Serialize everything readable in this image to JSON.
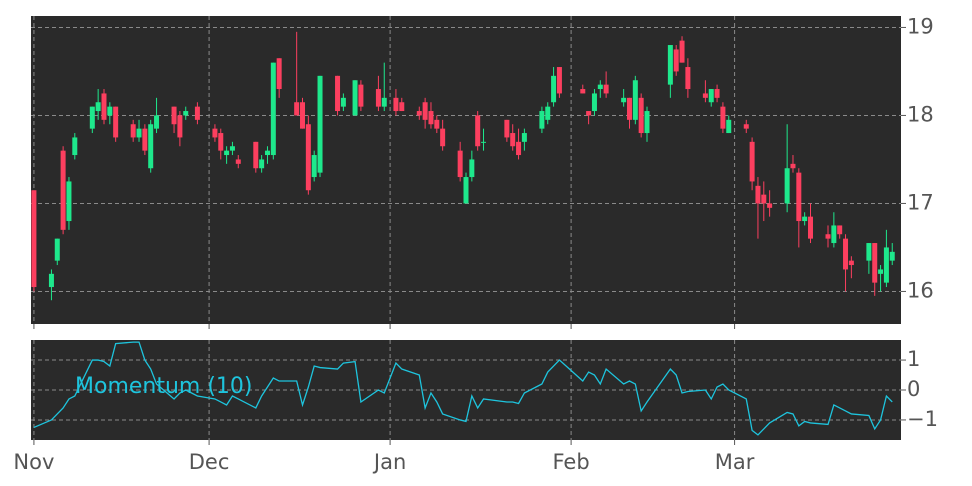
{
  "chart_data": [
    {
      "type": "candlestick",
      "x": [
        0,
        3,
        4,
        5,
        6,
        7,
        10,
        11,
        12,
        13,
        14,
        17,
        18,
        19,
        20,
        21,
        24,
        25,
        26,
        28,
        31,
        32,
        33,
        34,
        35,
        38,
        39,
        40,
        41,
        42,
        45,
        46,
        47,
        48,
        49,
        52,
        53,
        55,
        56,
        59,
        60,
        62,
        63,
        66,
        67,
        68,
        69,
        70,
        73,
        74,
        75,
        76,
        77,
        81,
        82,
        83,
        84,
        87,
        88,
        89,
        90,
        94,
        95,
        96,
        97,
        98,
        101,
        102,
        103,
        104,
        105,
        109,
        110,
        111,
        112,
        115,
        116,
        117,
        118,
        119,
        122,
        123,
        124,
        125,
        126,
        129,
        130,
        131,
        132,
        133,
        136,
        137,
        138,
        139,
        140,
        143,
        144,
        145,
        146,
        147
      ],
      "open": [
        17.15,
        16.05,
        16.35,
        17.6,
        16.8,
        17.55,
        17.85,
        18.05,
        18.25,
        18.0,
        18.1,
        17.9,
        17.75,
        17.85,
        17.4,
        17.85,
        18.1,
        18.0,
        18.0,
        18.1,
        17.85,
        17.8,
        17.55,
        17.6,
        17.5,
        17.7,
        17.4,
        17.55,
        17.55,
        18.65,
        18.15,
        18.15,
        17.9,
        17.3,
        17.35,
        18.45,
        18.1,
        18.0,
        18.35,
        18.3,
        18.1,
        18.2,
        18.15,
        18.05,
        18.15,
        18.05,
        17.95,
        17.85,
        17.6,
        17.0,
        17.3,
        18.0,
        17.7,
        17.95,
        17.8,
        17.7,
        17.7,
        17.85,
        17.95,
        18.15,
        18.55,
        18.3,
        18.05,
        18.05,
        18.3,
        18.35,
        18.15,
        18.2,
        17.95,
        18.2,
        17.8,
        18.35,
        18.75,
        18.85,
        18.55,
        18.25,
        18.15,
        18.3,
        18.1,
        17.8,
        17.9,
        17.7,
        17.2,
        17.1,
        17.0,
        17.0,
        17.45,
        17.35,
        16.8,
        16.85,
        16.65,
        16.55,
        16.75,
        16.6,
        16.35,
        16.35,
        16.55,
        16.2,
        16.1,
        16.35
      ],
      "high": [
        17.15,
        16.25,
        16.6,
        17.65,
        17.3,
        17.8,
        18.1,
        18.3,
        18.3,
        18.15,
        18.1,
        17.95,
        17.95,
        17.9,
        17.95,
        18.2,
        18.1,
        18.05,
        18.1,
        18.15,
        17.9,
        17.85,
        17.65,
        17.7,
        17.55,
        17.7,
        17.55,
        17.65,
        18.6,
        18.65,
        18.95,
        18.2,
        18.0,
        17.6,
        18.45,
        18.45,
        18.25,
        18.4,
        18.4,
        18.45,
        18.6,
        18.3,
        18.2,
        18.1,
        18.2,
        18.15,
        18.0,
        17.95,
        17.7,
        17.35,
        17.6,
        18.05,
        17.85,
        17.95,
        17.9,
        17.85,
        17.85,
        18.1,
        18.15,
        18.55,
        18.55,
        18.35,
        18.05,
        18.3,
        18.4,
        18.5,
        18.3,
        18.2,
        18.45,
        18.25,
        18.1,
        18.8,
        18.8,
        18.9,
        18.65,
        18.4,
        18.3,
        18.35,
        18.15,
        18.0,
        17.95,
        17.75,
        17.3,
        17.25,
        17.15,
        17.9,
        17.55,
        17.4,
        16.9,
        17.0,
        16.75,
        16.9,
        16.75,
        16.65,
        16.4,
        16.55,
        16.55,
        16.3,
        16.7,
        16.55
      ],
      "low": [
        16.0,
        15.9,
        16.3,
        16.65,
        16.7,
        17.5,
        17.8,
        17.95,
        17.9,
        17.9,
        17.7,
        17.7,
        17.7,
        17.55,
        17.35,
        17.8,
        17.8,
        17.65,
        17.95,
        17.9,
        17.7,
        17.5,
        17.45,
        17.55,
        17.4,
        17.35,
        17.35,
        17.45,
        17.5,
        18.2,
        18.0,
        17.85,
        17.1,
        17.25,
        17.3,
        18.0,
        18.05,
        18.0,
        18.05,
        18.05,
        18.05,
        18.0,
        18.05,
        17.95,
        17.85,
        17.85,
        17.8,
        17.6,
        17.25,
        17.0,
        17.25,
        17.6,
        17.6,
        17.7,
        17.6,
        17.5,
        17.6,
        17.8,
        17.9,
        18.1,
        18.2,
        18.25,
        17.9,
        18.0,
        18.2,
        18.2,
        18.1,
        17.85,
        17.9,
        17.75,
        17.7,
        18.2,
        18.45,
        18.6,
        18.2,
        18.15,
        18.1,
        18.15,
        17.8,
        17.8,
        17.8,
        17.15,
        16.6,
        16.8,
        16.85,
        16.9,
        17.35,
        16.5,
        16.75,
        16.55,
        16.5,
        16.5,
        16.6,
        16.0,
        16.15,
        16.2,
        15.95,
        16.0,
        16.05,
        16.3
      ],
      "close": [
        16.05,
        16.2,
        16.6,
        16.7,
        17.25,
        17.75,
        18.1,
        18.15,
        17.95,
        18.1,
        17.75,
        17.75,
        17.85,
        17.6,
        17.9,
        18.0,
        17.9,
        17.75,
        18.05,
        17.95,
        17.75,
        17.6,
        17.6,
        17.65,
        17.45,
        17.4,
        17.5,
        17.6,
        18.6,
        18.3,
        18.0,
        17.85,
        17.15,
        17.55,
        18.45,
        18.05,
        18.2,
        18.4,
        18.1,
        18.1,
        18.2,
        18.05,
        18.05,
        18.0,
        17.95,
        17.9,
        17.85,
        17.65,
        17.3,
        17.3,
        17.5,
        17.65,
        17.7,
        17.75,
        17.65,
        17.55,
        17.8,
        18.05,
        18.1,
        18.45,
        18.25,
        18.25,
        18.0,
        18.25,
        18.35,
        18.25,
        18.2,
        17.95,
        18.4,
        17.8,
        18.05,
        18.8,
        18.5,
        18.6,
        18.3,
        18.2,
        18.3,
        18.2,
        17.85,
        17.95,
        17.85,
        17.25,
        17.0,
        17.0,
        16.95,
        17.4,
        17.4,
        16.8,
        16.85,
        16.6,
        16.6,
        16.75,
        16.65,
        16.25,
        16.3,
        16.55,
        16.1,
        16.25,
        16.5,
        16.45
      ],
      "up_color": "#1ee88c",
      "down_color": "#fc3f5f",
      "xlim": [
        -0.5,
        148.5
      ],
      "ylim": [
        15.63,
        19.13
      ],
      "yticks": [
        16,
        17,
        18,
        19
      ],
      "grid": true
    },
    {
      "type": "line",
      "series": [
        {
          "name": "Momentum (10)",
          "color": "#1ec4dd",
          "values": [
            -1.25,
            -1.0,
            -0.8,
            -0.6,
            -0.3,
            -0.2,
            1.0,
            1.0,
            0.95,
            0.8,
            1.55,
            1.6,
            1.6,
            1.0,
            0.7,
            0.2,
            -0.3,
            -0.1,
            0.0,
            -0.2,
            -0.3,
            -0.4,
            -0.5,
            -0.2,
            -0.3,
            -0.6,
            -0.2,
            0.1,
            0.4,
            0.3,
            0.3,
            -0.5,
            0.1,
            0.8,
            0.75,
            0.7,
            0.9,
            0.95,
            -0.4,
            0.0,
            -0.1,
            0.9,
            0.7,
            0.5,
            -0.6,
            -0.1,
            -0.4,
            -0.8,
            -1.0,
            -1.05,
            -0.2,
            -0.6,
            -0.3,
            -0.4,
            -0.4,
            -0.45,
            -0.1,
            0.2,
            0.6,
            0.8,
            1.0,
            0.3,
            0.6,
            0.5,
            0.2,
            0.7,
            0.2,
            0.3,
            0.2,
            -0.7,
            -0.4,
            0.7,
            0.5,
            -0.1,
            -0.05,
            0.0,
            -0.3,
            0.1,
            0.2,
            0.0,
            -0.3,
            -1.35,
            -1.5,
            -1.3,
            -1.1,
            -0.75,
            -0.8,
            -1.2,
            -1.05,
            -1.1,
            -1.15,
            -0.5,
            -0.6,
            -0.7,
            -0.8,
            -0.85,
            -1.3,
            -1.0,
            -0.2,
            -0.4
          ]
        }
      ],
      "xlim": [
        -0.5,
        148.5
      ],
      "xticks": [
        {
          "value": 0,
          "label": "Nov"
        },
        {
          "value": 30,
          "label": "Dec"
        },
        {
          "value": 61,
          "label": "Jan"
        },
        {
          "value": 92,
          "label": "Feb"
        },
        {
          "value": 120,
          "label": "Mar"
        }
      ],
      "ylim": [
        -1.67,
        1.67
      ],
      "yticks": [
        {
          "value": -1,
          "label": "−1"
        },
        0,
        1
      ],
      "grid": true
    }
  ]
}
